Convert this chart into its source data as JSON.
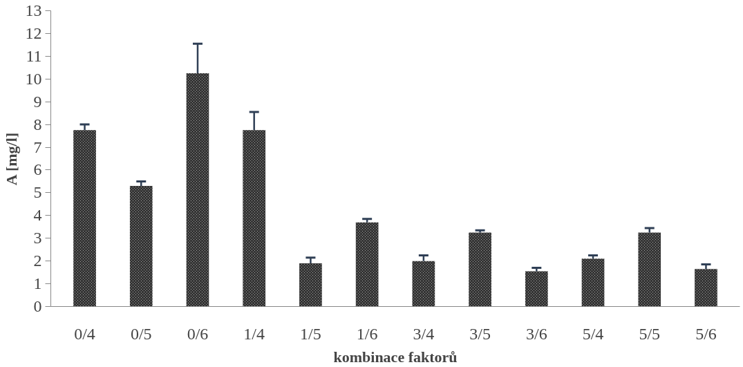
{
  "chart_data": {
    "type": "bar",
    "xlabel": "kombinace faktorů",
    "ylabel": "A [mg/l]",
    "categories": [
      "0/4",
      "0/5",
      "0/6",
      "1/4",
      "1/5",
      "1/6",
      "3/4",
      "3/5",
      "3/6",
      "5/4",
      "5/5",
      "5/6"
    ],
    "values": [
      7.75,
      5.3,
      10.25,
      7.75,
      1.9,
      3.7,
      2.0,
      3.25,
      1.55,
      2.1,
      3.25,
      1.65
    ],
    "errors": [
      0.25,
      0.2,
      1.3,
      0.8,
      0.25,
      0.15,
      0.25,
      0.1,
      0.15,
      0.15,
      0.2,
      0.2
    ],
    "color": "#333333",
    "ylim": [
      0,
      13
    ],
    "yticks": [
      0,
      1,
      2,
      3,
      4,
      5,
      6,
      7,
      8,
      9,
      10,
      11,
      12,
      13
    ],
    "grid": false
  }
}
